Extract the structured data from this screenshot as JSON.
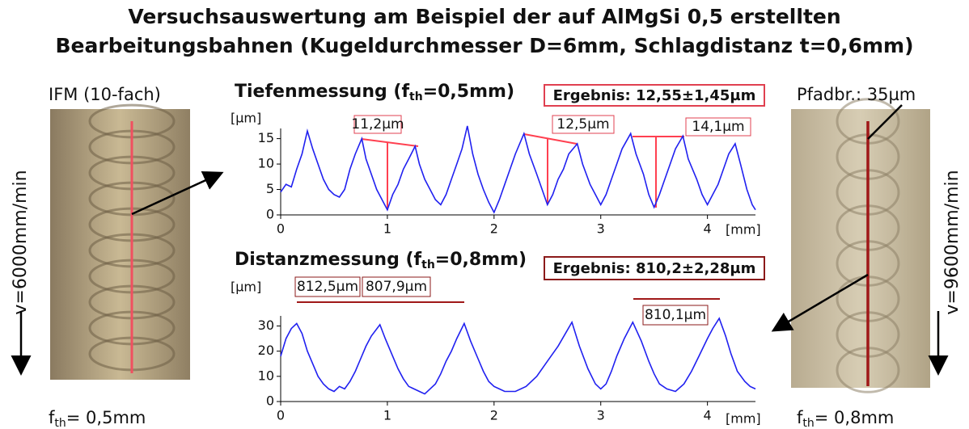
{
  "title": [
    "Versuchsauswertung am Beispiel der auf AlMgSi 0,5 erstellten",
    "Bearbeitungsbahnen (Kugeldurchmesser D=6mm, Schlagdistanz t=0,6mm)"
  ],
  "left_panel": {
    "label": "IFM (10-fach)",
    "speed": "v=6000mm/min",
    "feed": [
      "f",
      "th",
      "= 0,5mm"
    ]
  },
  "right_panel": {
    "label": "Pfadbr.:  35µm",
    "speed": "v=9600mm/min",
    "feed": [
      "f",
      "th",
      "= 0,8mm"
    ]
  },
  "chart_data": [
    {
      "type": "line",
      "title": [
        "Tiefenmessung (f",
        "th",
        "=0,5mm)"
      ],
      "y_label": "[µm]",
      "x_label": "[mm]",
      "result": "Ergebnis: 12,55±1,45µm",
      "annotations": [
        "11,2µm",
        "12,5µm",
        "14,1µm"
      ],
      "color": "#2020f0",
      "xlim": [
        0,
        4.45
      ],
      "xticks": [
        0,
        1,
        2,
        3,
        4
      ],
      "ylim": [
        0,
        17
      ],
      "yticks": [
        0,
        5,
        10,
        15
      ],
      "x": [
        0,
        0.05,
        0.1,
        0.15,
        0.2,
        0.25,
        0.3,
        0.35,
        0.4,
        0.45,
        0.5,
        0.55,
        0.6,
        0.65,
        0.7,
        0.76,
        0.8,
        0.85,
        0.9,
        0.95,
        1.0,
        1.05,
        1.1,
        1.15,
        1.2,
        1.26,
        1.3,
        1.35,
        1.4,
        1.45,
        1.5,
        1.55,
        1.6,
        1.65,
        1.7,
        1.75,
        1.8,
        1.85,
        1.9,
        1.95,
        2.0,
        2.05,
        2.1,
        2.15,
        2.2,
        2.28,
        2.33,
        2.4,
        2.45,
        2.5,
        2.55,
        2.6,
        2.65,
        2.7,
        2.78,
        2.83,
        2.9,
        2.95,
        3.0,
        3.05,
        3.1,
        3.15,
        3.2,
        3.28,
        3.33,
        3.4,
        3.45,
        3.5,
        3.55,
        3.6,
        3.65,
        3.7,
        3.77,
        3.82,
        3.9,
        3.95,
        4.0,
        4.05,
        4.1,
        4.15,
        4.2,
        4.26,
        4.31,
        4.37,
        4.42,
        4.45
      ],
      "values": [
        4.5,
        6,
        5.5,
        9,
        12,
        16.5,
        13,
        10,
        7,
        5,
        4,
        3.5,
        5,
        9,
        12,
        15,
        11,
        8,
        5,
        3,
        1,
        4,
        6,
        9,
        11,
        13.5,
        10,
        7,
        5,
        3,
        2,
        4,
        7,
        10,
        13,
        17.5,
        12,
        8,
        5,
        2.5,
        0.5,
        3,
        6,
        9,
        12,
        16,
        12,
        8,
        5,
        2,
        4,
        7,
        9,
        12,
        14,
        10,
        6,
        4,
        2,
        4,
        7,
        10,
        13,
        16,
        12,
        8,
        4,
        1.5,
        4,
        7,
        10,
        13,
        15.5,
        11,
        7,
        4,
        2,
        4,
        6,
        9,
        12,
        14,
        10,
        5,
        2,
        1
      ]
    },
    {
      "type": "line",
      "title": [
        "Distanzmessung (f",
        "th",
        "=0,8mm)"
      ],
      "y_label": "[µm]",
      "x_label": "[mm]",
      "result": "Ergebnis: 810,2±2,28µm",
      "annotations": [
        "812,5µm",
        "807,9µm",
        "810,1µm"
      ],
      "color": "#2020f0",
      "xlim": [
        0,
        4.45
      ],
      "xticks": [
        0,
        1,
        2,
        3,
        4
      ],
      "ylim": [
        0,
        34
      ],
      "yticks": [
        0,
        10,
        20,
        30
      ],
      "x": [
        0,
        0.05,
        0.1,
        0.15,
        0.2,
        0.25,
        0.3,
        0.35,
        0.4,
        0.45,
        0.5,
        0.55,
        0.6,
        0.65,
        0.7,
        0.75,
        0.8,
        0.85,
        0.93,
        0.98,
        1.05,
        1.1,
        1.15,
        1.2,
        1.25,
        1.3,
        1.35,
        1.4,
        1.45,
        1.5,
        1.55,
        1.6,
        1.65,
        1.72,
        1.78,
        1.85,
        1.9,
        1.95,
        2.0,
        2.05,
        2.1,
        2.2,
        2.3,
        2.4,
        2.5,
        2.6,
        2.73,
        2.8,
        2.88,
        2.95,
        3.0,
        3.05,
        3.1,
        3.15,
        3.22,
        3.3,
        3.38,
        3.45,
        3.5,
        3.55,
        3.62,
        3.7,
        3.78,
        3.85,
        3.92,
        4.0,
        4.05,
        4.11,
        4.17,
        4.22,
        4.28,
        4.35,
        4.4,
        4.45
      ],
      "values": [
        18,
        25,
        29,
        31,
        27,
        20,
        15,
        10,
        7,
        5,
        4,
        6,
        5,
        8,
        12,
        17,
        22,
        26,
        30.5,
        25,
        18,
        13,
        9,
        6,
        5,
        4,
        3,
        5,
        7,
        11,
        16,
        20,
        25,
        31,
        24,
        17,
        12,
        8,
        6,
        5,
        4,
        4,
        6,
        10,
        16,
        22,
        31.5,
        22,
        13,
        7,
        5,
        7,
        12,
        18,
        25,
        31.5,
        24,
        16,
        11,
        7,
        5,
        4,
        7,
        12,
        18,
        25,
        29,
        33,
        26,
        19,
        12,
        8,
        6,
        5
      ]
    }
  ]
}
